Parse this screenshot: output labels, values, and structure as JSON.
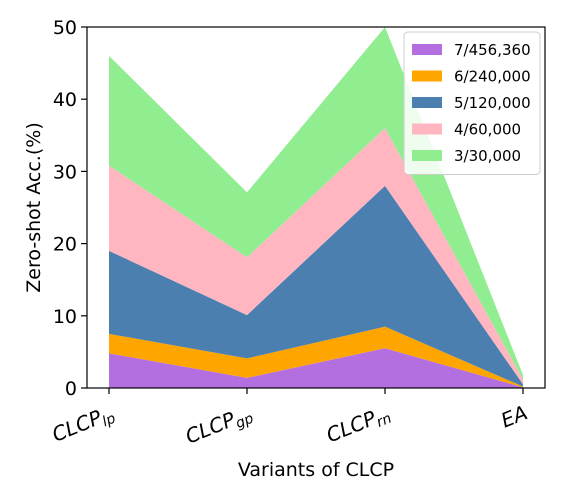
{
  "chart_data": {
    "type": "area",
    "stacked": true,
    "xlabel": "Variants of CLCP",
    "ylabel": "Zero-shot Acc.(%)",
    "ylim": [
      0,
      50
    ],
    "yticks": [
      0,
      10,
      20,
      30,
      40,
      50
    ],
    "categories": [
      {
        "main": "CLCP",
        "sub": "lp"
      },
      {
        "main": "CLCP",
        "sub": "gp"
      },
      {
        "main": "CLCP",
        "sub": "rn"
      },
      {
        "main": "EA",
        "sub": ""
      }
    ],
    "legend_position": "top-right",
    "grid": false,
    "series": [
      {
        "name": "7/456,360",
        "color": "#b36fe0",
        "values": [
          4.8,
          1.4,
          5.5,
          0.1
        ]
      },
      {
        "name": "6/240,000",
        "color": "#ffa500",
        "values": [
          2.7,
          2.7,
          3.0,
          0.1
        ]
      },
      {
        "name": "5/120,000",
        "color": "#4a7fb0",
        "values": [
          11.5,
          6.0,
          19.5,
          0.3
        ]
      },
      {
        "name": "4/60,000",
        "color": "#ffb6c1",
        "values": [
          11.8,
          8.0,
          8.0,
          0.7
        ]
      },
      {
        "name": "3/30,000",
        "color": "#90ee90",
        "values": [
          15.2,
          9.0,
          14.0,
          0.6
        ]
      }
    ]
  }
}
